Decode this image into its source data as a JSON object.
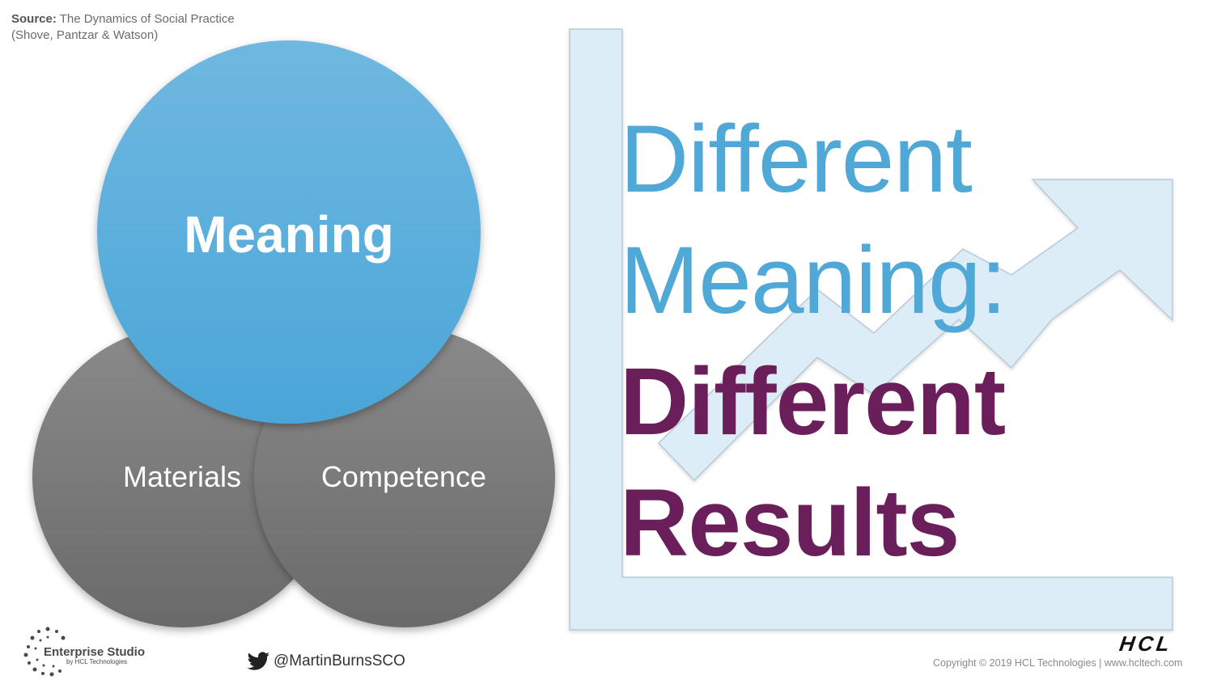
{
  "source": {
    "label": "Source:",
    "text": "The Dynamics of Social Practice",
    "authors": "(Shove, Pantzar & Watson)"
  },
  "venn": {
    "top_circle": "Meaning",
    "bottom_left_circle": "Materials",
    "bottom_right_circle": "Competence"
  },
  "headline": {
    "line1": "Different",
    "line2": "Meaning:",
    "line3": "Different",
    "line4": "Results"
  },
  "footer": {
    "studio_name": "Enterprise Studio",
    "studio_sub": "by HCL Technologies",
    "twitter_handle": "@MartinBurnsSCO",
    "brand": "HCL",
    "copyright": "Copyright © 2019 HCL Technologies | www.hcltech.com"
  },
  "colors": {
    "blue": "#4fa8d6",
    "plum": "#6b1f5a",
    "grey": "#7a7a7a",
    "pale_blue": "#dcedf8"
  },
  "icons": {
    "twitter": "bird-icon",
    "growth": "arrow-up-right-icon"
  }
}
